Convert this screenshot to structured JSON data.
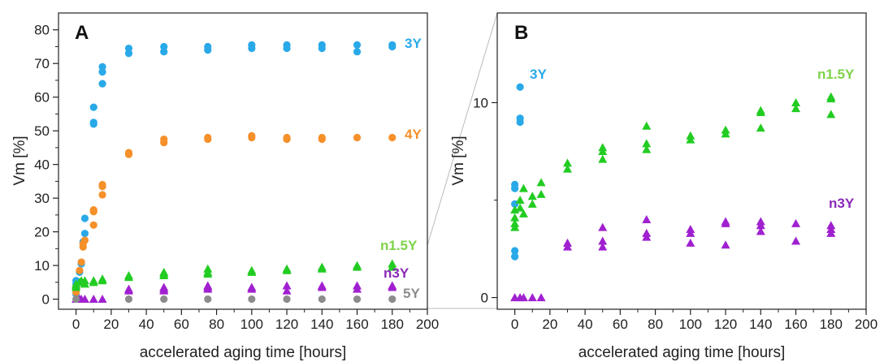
{
  "chart_data": [
    {
      "panel": "A",
      "type": "scatter",
      "xlabel": "accelerated aging time [hours]",
      "ylabel": "Vm [%]",
      "xlim": [
        -10,
        200
      ],
      "ylim": [
        -3,
        85
      ],
      "xticks": [
        0,
        20,
        40,
        60,
        80,
        100,
        120,
        140,
        160,
        180,
        200
      ],
      "yticks": [
        0,
        10,
        20,
        30,
        40,
        50,
        60,
        70,
        80
      ],
      "series": [
        {
          "name": "3Y",
          "marker": "circle",
          "color": "#29a9e8",
          "points": [
            [
              0,
              1.5
            ],
            [
              0,
              3
            ],
            [
              0,
              4.5
            ],
            [
              0,
              5.5
            ],
            [
              2,
              8
            ],
            [
              3,
              10.5
            ],
            [
              4,
              17
            ],
            [
              5,
              19.5
            ],
            [
              5,
              24
            ],
            [
              10,
              52
            ],
            [
              10,
              52.5
            ],
            [
              10,
              57
            ],
            [
              15,
              64
            ],
            [
              15,
              67.5
            ],
            [
              15,
              69
            ],
            [
              30,
              73
            ],
            [
              30,
              74.5
            ],
            [
              50,
              73.5
            ],
            [
              50,
              75
            ],
            [
              75,
              74
            ],
            [
              75,
              75
            ],
            [
              100,
              74.5
            ],
            [
              100,
              75.5
            ],
            [
              120,
              74.5
            ],
            [
              120,
              75.5
            ],
            [
              140,
              74.5
            ],
            [
              140,
              75.5
            ],
            [
              160,
              73.5
            ],
            [
              160,
              75.5
            ],
            [
              180,
              75
            ],
            [
              180,
              75.5
            ]
          ]
        },
        {
          "name": "4Y",
          "marker": "circle",
          "color": "#f5902a",
          "points": [
            [
              0,
              2
            ],
            [
              0,
              3.5
            ],
            [
              2,
              8.5
            ],
            [
              3,
              11
            ],
            [
              4,
              15.5
            ],
            [
              4,
              16.5
            ],
            [
              5,
              17.5
            ],
            [
              10,
              22
            ],
            [
              10,
              26
            ],
            [
              10,
              26.5
            ],
            [
              15,
              31
            ],
            [
              15,
              33.5
            ],
            [
              15,
              34
            ],
            [
              30,
              43
            ],
            [
              30,
              43.5
            ],
            [
              50,
              46.5
            ],
            [
              50,
              47.5
            ],
            [
              75,
              47.5
            ],
            [
              75,
              48
            ],
            [
              100,
              48
            ],
            [
              100,
              48.5
            ],
            [
              120,
              47.5
            ],
            [
              120,
              48
            ],
            [
              140,
              47.5
            ],
            [
              140,
              48
            ],
            [
              160,
              48
            ],
            [
              180,
              48
            ]
          ]
        },
        {
          "name": "n1.5Y",
          "marker": "triangle",
          "color": "#22cc22",
          "points": [
            [
              0,
              3.5
            ],
            [
              0,
              4
            ],
            [
              0,
              4.5
            ],
            [
              2,
              5
            ],
            [
              3,
              5.5
            ],
            [
              5,
              4.5
            ],
            [
              5,
              5.5
            ],
            [
              10,
              5
            ],
            [
              10,
              5.5
            ],
            [
              15,
              5.5
            ],
            [
              15,
              6
            ],
            [
              30,
              6.5
            ],
            [
              30,
              7
            ],
            [
              50,
              7
            ],
            [
              50,
              7.5
            ],
            [
              50,
              8
            ],
            [
              75,
              7.5
            ],
            [
              75,
              8
            ],
            [
              75,
              9
            ],
            [
              100,
              8
            ],
            [
              100,
              8.5
            ],
            [
              120,
              8.5
            ],
            [
              120,
              9
            ],
            [
              140,
              9
            ],
            [
              140,
              9.5
            ],
            [
              160,
              9.5
            ],
            [
              160,
              10
            ],
            [
              180,
              9.5
            ],
            [
              180,
              10.5
            ]
          ]
        },
        {
          "name": "n3Y",
          "marker": "triangle",
          "color": "#a020d0",
          "points": [
            [
              0,
              0
            ],
            [
              2,
              0
            ],
            [
              3,
              0
            ],
            [
              5,
              0
            ],
            [
              10,
              0
            ],
            [
              15,
              0
            ],
            [
              30,
              2.5
            ],
            [
              30,
              3
            ],
            [
              50,
              2.5
            ],
            [
              50,
              3
            ],
            [
              50,
              3.5
            ],
            [
              75,
              3
            ],
            [
              75,
              3.5
            ],
            [
              75,
              4
            ],
            [
              100,
              3
            ],
            [
              100,
              3.5
            ],
            [
              120,
              2.5
            ],
            [
              120,
              4
            ],
            [
              140,
              3.5
            ],
            [
              140,
              4
            ],
            [
              160,
              3
            ],
            [
              160,
              4
            ],
            [
              180,
              3.5
            ],
            [
              180,
              4
            ]
          ]
        },
        {
          "name": "5Y",
          "marker": "circle",
          "color": "#8c8c8c",
          "points": [
            [
              0,
              0
            ],
            [
              30,
              0
            ],
            [
              50,
              0
            ],
            [
              75,
              0
            ],
            [
              100,
              0
            ],
            [
              120,
              0
            ],
            [
              140,
              0
            ],
            [
              160,
              0
            ],
            [
              180,
              0
            ]
          ]
        }
      ]
    },
    {
      "panel": "B",
      "type": "scatter",
      "xlabel": "accelerated aging time [hours]",
      "ylabel": "Vm [%]",
      "xlim": [
        -10,
        200
      ],
      "ylim": [
        -0.6,
        14.6
      ],
      "xticks": [
        0,
        20,
        40,
        60,
        80,
        100,
        120,
        140,
        160,
        180,
        200
      ],
      "yticks": [
        0,
        10
      ],
      "series": [
        {
          "name": "3Y",
          "marker": "circle",
          "color": "#29a9e8",
          "points": [
            [
              0,
              2.1
            ],
            [
              0,
              2.4
            ],
            [
              0,
              4.8
            ],
            [
              0,
              5.6
            ],
            [
              0,
              5.8
            ],
            [
              3,
              9
            ],
            [
              3,
              9.2
            ],
            [
              3,
              10.8
            ]
          ]
        },
        {
          "name": "n1.5Y",
          "marker": "triangle",
          "color": "#22cc22",
          "points": [
            [
              0,
              3.6
            ],
            [
              0,
              3.8
            ],
            [
              0,
              4.1
            ],
            [
              0,
              4.5
            ],
            [
              3,
              4.6
            ],
            [
              3,
              5.0
            ],
            [
              5,
              4.3
            ],
            [
              5,
              5.6
            ],
            [
              10,
              4.8
            ],
            [
              10,
              5.2
            ],
            [
              15,
              5.3
            ],
            [
              15,
              5.9
            ],
            [
              30,
              6.6
            ],
            [
              30,
              6.9
            ],
            [
              50,
              7.1
            ],
            [
              50,
              7.5
            ],
            [
              50,
              7.7
            ],
            [
              75,
              7.6
            ],
            [
              75,
              7.9
            ],
            [
              75,
              8.8
            ],
            [
              100,
              8.1
            ],
            [
              100,
              8.3
            ],
            [
              120,
              8.4
            ],
            [
              120,
              8.6
            ],
            [
              140,
              8.7
            ],
            [
              140,
              9.5
            ],
            [
              140,
              9.6
            ],
            [
              160,
              9.7
            ],
            [
              160,
              10.0
            ],
            [
              180,
              9.4
            ],
            [
              180,
              10.2
            ],
            [
              180,
              10.3
            ]
          ]
        },
        {
          "name": "n3Y",
          "marker": "triangle",
          "color": "#a020d0",
          "points": [
            [
              0,
              0
            ],
            [
              3,
              0
            ],
            [
              5,
              0
            ],
            [
              10,
              0
            ],
            [
              15,
              0
            ],
            [
              30,
              2.6
            ],
            [
              30,
              2.8
            ],
            [
              50,
              2.6
            ],
            [
              50,
              2.9
            ],
            [
              50,
              3.6
            ],
            [
              75,
              3.1
            ],
            [
              75,
              3.3
            ],
            [
              75,
              4.0
            ],
            [
              100,
              2.8
            ],
            [
              100,
              3.3
            ],
            [
              100,
              3.5
            ],
            [
              120,
              2.7
            ],
            [
              120,
              3.8
            ],
            [
              120,
              3.9
            ],
            [
              140,
              3.4
            ],
            [
              140,
              3.7
            ],
            [
              140,
              3.9
            ],
            [
              160,
              2.9
            ],
            [
              160,
              3.8
            ],
            [
              180,
              3.3
            ],
            [
              180,
              3.5
            ],
            [
              180,
              3.7
            ]
          ]
        }
      ]
    }
  ],
  "panels": {
    "a": {
      "label": "A",
      "series_labels": {
        "s3y": "3Y",
        "s4y": "4Y",
        "sn15y": "n1.5Y",
        "sn3y": "n3Y",
        "s5y": "5Y"
      }
    },
    "b": {
      "label": "B",
      "series_labels": {
        "s3y": "3Y",
        "sn15y": "n1.5Y",
        "sn3y": "n3Y"
      }
    }
  }
}
